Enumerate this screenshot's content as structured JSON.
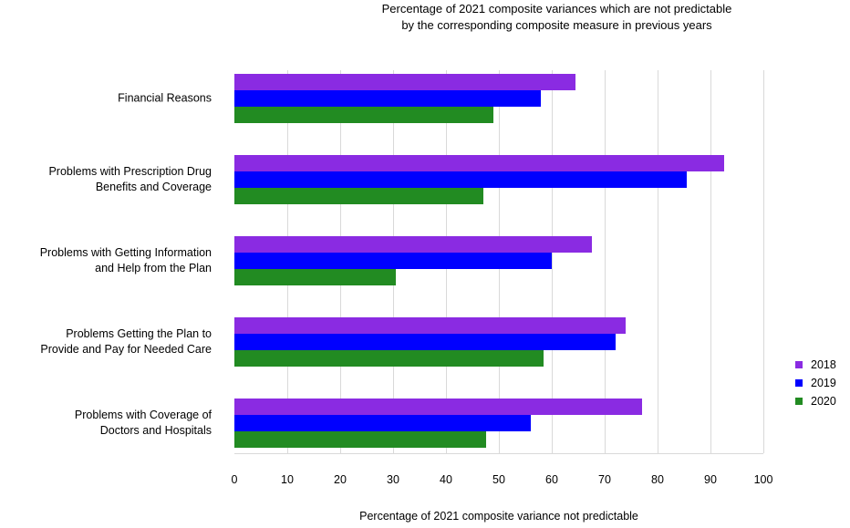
{
  "title": {
    "lines": [
      "Percentage of 2021 composite variances which are not predictable",
      "by the corresponding composite measure in previous years"
    ]
  },
  "chart_data": {
    "type": "bar",
    "orientation": "horizontal",
    "title": "Percentage of 2021 composite variances which are not predictable by the corresponding composite measure in previous years",
    "xlabel": "Percentage of 2021 composite variance not predictable",
    "xlim": [
      0,
      100
    ],
    "xticks": [
      0,
      10,
      20,
      30,
      40,
      50,
      60,
      70,
      80,
      90,
      100
    ],
    "grid": true,
    "legend_position": "right",
    "categories": [
      "Financial Reasons",
      "Problems with Prescription Drug Benefits and Coverage",
      "Problems with Getting Information and Help from the Plan",
      "Problems Getting the Plan to Provide and Pay for Needed Care",
      "Problems with Coverage of Doctors and Hospitals"
    ],
    "category_lines": [
      [
        "Financial Reasons"
      ],
      [
        "Problems with Prescription Drug",
        "Benefits and Coverage"
      ],
      [
        "Problems with Getting Information",
        "and Help from the Plan"
      ],
      [
        "Problems Getting the Plan to",
        "Provide and Pay for Needed Care"
      ],
      [
        "Problems with Coverage of",
        "Doctors and Hospitals"
      ]
    ],
    "series": [
      {
        "name": "2018",
        "color": "#8a2be2",
        "values": [
          64.5,
          92.5,
          67.5,
          74.0,
          77.0
        ]
      },
      {
        "name": "2019",
        "color": "#0000ff",
        "values": [
          58.0,
          85.5,
          60.0,
          72.0,
          56.0
        ]
      },
      {
        "name": "2020",
        "color": "#228b22",
        "values": [
          49.0,
          47.0,
          30.5,
          58.5,
          47.5
        ]
      }
    ],
    "colors": {
      "gridline": "#d9d9d9",
      "axis_line": "#d9d9d9",
      "text": "#000000",
      "background": "#ffffff"
    }
  }
}
